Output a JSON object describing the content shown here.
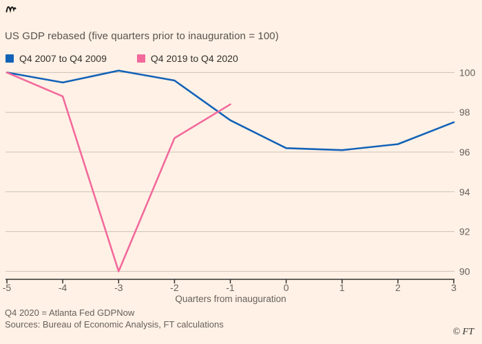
{
  "header": {
    "title": "US GDP rebased (five quarters prior to inauguration = 100)"
  },
  "legend": {
    "items": [
      {
        "label": "Q4 2007 to Q4 2009",
        "color": "#1262b8"
      },
      {
        "label": "Q4 2019 to Q4 2020",
        "color": "#f2699c"
      }
    ]
  },
  "chart_data": {
    "type": "line",
    "title": "US GDP rebased (five quarters prior to inauguration = 100)",
    "xlabel": "Quarters from inauguration",
    "ylabel": "",
    "x_ticks": [
      -5,
      -4,
      -3,
      -2,
      -1,
      0,
      1,
      2,
      3
    ],
    "y_ticks": [
      90,
      92,
      94,
      96,
      98,
      100
    ],
    "xlim": [
      -5,
      3
    ],
    "ylim": [
      89.6,
      100.4
    ],
    "grid": "horizontal",
    "legend_position": "top-left",
    "series": [
      {
        "name": "Q4 2007 to Q4 2009",
        "color": "#1262b8",
        "x": [
          -5,
          -4,
          -3,
          -2,
          -1,
          0,
          1,
          2,
          3
        ],
        "y": [
          100,
          99.5,
          100.1,
          99.6,
          97.6,
          96.2,
          96.1,
          96.4,
          97.5
        ]
      },
      {
        "name": "Q4 2019 to Q4 2020",
        "color": "#f2699c",
        "x": [
          -5,
          -4,
          -3,
          -2,
          -1
        ],
        "y": [
          100,
          98.8,
          90.0,
          96.7,
          98.4
        ]
      }
    ]
  },
  "footer": {
    "note": "Q4 2020 = Atlanta Fed GDPNow",
    "sources": "Sources: Bureau of Economic Analysis, FT calculations",
    "copyright": "© FT"
  },
  "colors": {
    "background": "#fff1e5",
    "grid": "#ccc1b7",
    "axis": "#33302e",
    "text": "#33302e",
    "muted_text": "#66605c"
  }
}
